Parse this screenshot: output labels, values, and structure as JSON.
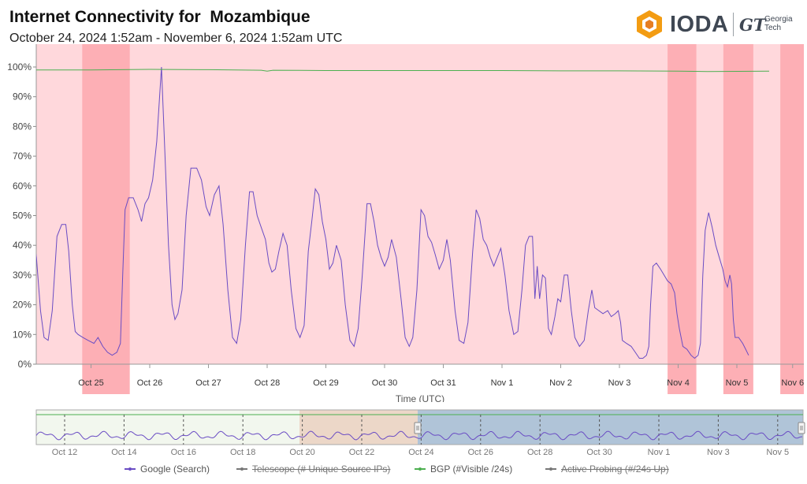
{
  "header": {
    "title": "Internet Connectivity for  Mozambique",
    "subtitle": "October 24, 2024 1:52am - November 6, 2024 1:52am UTC"
  },
  "logo": {
    "ioda": "IODA",
    "gt_mark": "GT",
    "gt_line1": "Georgia",
    "gt_line2": "Tech",
    "icon": "ioda-hexagon-icon",
    "brand_color": "#f39c12"
  },
  "chart_data": {
    "type": "line",
    "title": "",
    "xlabel": "Time (UTC)",
    "ylabel": "",
    "x_range_days": [
      -0.6,
      12.55
    ],
    "ylim": [
      0,
      100
    ],
    "y_ticks": [
      "0%",
      "10%",
      "20%",
      "30%",
      "40%",
      "50%",
      "60%",
      "70%",
      "80%",
      "90%",
      "100%"
    ],
    "x_ticks": [
      {
        "label": "Oct 25",
        "day": 1
      },
      {
        "label": "Oct 26",
        "day": 2
      },
      {
        "label": "Oct 27",
        "day": 3
      },
      {
        "label": "Oct 28",
        "day": 4
      },
      {
        "label": "Oct 29",
        "day": 5
      },
      {
        "label": "Oct 30",
        "day": 6
      },
      {
        "label": "Oct 31",
        "day": 7
      },
      {
        "label": "Nov 1",
        "day": 8
      },
      {
        "label": "Nov 2",
        "day": 9
      },
      {
        "label": "Nov 3",
        "day": 10
      },
      {
        "label": "Nov 4",
        "day": 11
      },
      {
        "label": "Nov 5",
        "day": 12
      },
      {
        "label": "Nov 6",
        "day": 12.95
      }
    ],
    "outage_bands_days": [
      [
        0.85,
        1.66
      ],
      [
        10.82,
        11.31
      ],
      [
        11.77,
        12.28
      ],
      [
        12.74,
        13.4
      ]
    ],
    "background_alert_color": "#ffd8dc",
    "band_color": "#fdafb5",
    "series": [
      {
        "name": "Google (Search)",
        "color": "#6a4cc4",
        "points": [
          [
            -0.6,
            7
          ],
          [
            -0.53,
            15
          ],
          [
            -0.46,
            38
          ],
          [
            -0.38,
            51
          ],
          [
            -0.3,
            45
          ],
          [
            -0.22,
            40
          ],
          [
            -0.17,
            33
          ],
          [
            -0.12,
            31
          ],
          [
            -0.06,
            42
          ],
          [
            0.0,
            45
          ],
          [
            0.07,
            36
          ],
          [
            0.14,
            18
          ],
          [
            0.2,
            9
          ],
          [
            0.27,
            8
          ],
          [
            0.34,
            18
          ],
          [
            0.42,
            43
          ],
          [
            0.5,
            47
          ],
          [
            0.57,
            47
          ],
          [
            0.62,
            38
          ],
          [
            0.68,
            20
          ],
          [
            0.73,
            11
          ],
          [
            0.78,
            10
          ],
          [
            0.86,
            9
          ],
          [
            0.95,
            8
          ],
          [
            1.05,
            7
          ],
          [
            1.12,
            9
          ],
          [
            1.2,
            6
          ],
          [
            1.28,
            4
          ],
          [
            1.36,
            3
          ],
          [
            1.44,
            4
          ],
          [
            1.5,
            7
          ],
          [
            1.54,
            30
          ],
          [
            1.58,
            52
          ],
          [
            1.64,
            56
          ],
          [
            1.72,
            56
          ],
          [
            1.8,
            52
          ],
          [
            1.86,
            48
          ],
          [
            1.92,
            54
          ],
          [
            1.98,
            56
          ],
          [
            2.05,
            62
          ],
          [
            2.12,
            75
          ],
          [
            2.2,
            100
          ],
          [
            2.26,
            70
          ],
          [
            2.32,
            40
          ],
          [
            2.38,
            20
          ],
          [
            2.43,
            15
          ],
          [
            2.48,
            17
          ],
          [
            2.55,
            25
          ],
          [
            2.62,
            50
          ],
          [
            2.7,
            66
          ],
          [
            2.8,
            66
          ],
          [
            2.88,
            62
          ],
          [
            2.96,
            53
          ],
          [
            3.02,
            50
          ],
          [
            3.1,
            57
          ],
          [
            3.18,
            60
          ],
          [
            3.25,
            47
          ],
          [
            3.33,
            25
          ],
          [
            3.41,
            9
          ],
          [
            3.48,
            7
          ],
          [
            3.55,
            15
          ],
          [
            3.63,
            40
          ],
          [
            3.7,
            58
          ],
          [
            3.76,
            58
          ],
          [
            3.83,
            50
          ],
          [
            3.9,
            46
          ],
          [
            3.97,
            42
          ],
          [
            4.03,
            34
          ],
          [
            4.08,
            31
          ],
          [
            4.14,
            32
          ],
          [
            4.2,
            38
          ],
          [
            4.27,
            44
          ],
          [
            4.34,
            40
          ],
          [
            4.41,
            25
          ],
          [
            4.49,
            12
          ],
          [
            4.56,
            9
          ],
          [
            4.63,
            13
          ],
          [
            4.7,
            38
          ],
          [
            4.76,
            48
          ],
          [
            4.82,
            59
          ],
          [
            4.88,
            57
          ],
          [
            4.94,
            48
          ],
          [
            5.0,
            42
          ],
          [
            5.06,
            32
          ],
          [
            5.12,
            34
          ],
          [
            5.18,
            40
          ],
          [
            5.26,
            35
          ],
          [
            5.33,
            20
          ],
          [
            5.41,
            8
          ],
          [
            5.48,
            6
          ],
          [
            5.55,
            12
          ],
          [
            5.62,
            30
          ],
          [
            5.7,
            54
          ],
          [
            5.76,
            54
          ],
          [
            5.82,
            48
          ],
          [
            5.88,
            40
          ],
          [
            5.94,
            36
          ],
          [
            6.0,
            33
          ],
          [
            6.06,
            36
          ],
          [
            6.12,
            42
          ],
          [
            6.2,
            36
          ],
          [
            6.28,
            22
          ],
          [
            6.35,
            9
          ],
          [
            6.42,
            6
          ],
          [
            6.48,
            9
          ],
          [
            6.55,
            25
          ],
          [
            6.62,
            52
          ],
          [
            6.68,
            50
          ],
          [
            6.74,
            43
          ],
          [
            6.8,
            41
          ],
          [
            6.86,
            37
          ],
          [
            6.93,
            32
          ],
          [
            7.0,
            35
          ],
          [
            7.06,
            42
          ],
          [
            7.12,
            35
          ],
          [
            7.2,
            18
          ],
          [
            7.27,
            8
          ],
          [
            7.35,
            7
          ],
          [
            7.42,
            14
          ],
          [
            7.5,
            38
          ],
          [
            7.56,
            52
          ],
          [
            7.62,
            49
          ],
          [
            7.68,
            42
          ],
          [
            7.74,
            40
          ],
          [
            7.8,
            36
          ],
          [
            7.86,
            33
          ],
          [
            7.92,
            36
          ],
          [
            7.98,
            39
          ],
          [
            8.05,
            30
          ],
          [
            8.12,
            18
          ],
          [
            8.2,
            10
          ],
          [
            8.27,
            11
          ],
          [
            8.34,
            25
          ],
          [
            8.4,
            40
          ],
          [
            8.46,
            43
          ],
          [
            8.52,
            43
          ],
          [
            8.56,
            22
          ],
          [
            8.6,
            33
          ],
          [
            8.64,
            22
          ],
          [
            8.69,
            30
          ],
          [
            8.74,
            29
          ],
          [
            8.79,
            12
          ],
          [
            8.84,
            10
          ],
          [
            8.9,
            16
          ],
          [
            8.95,
            22
          ],
          [
            9.0,
            21
          ],
          [
            9.06,
            30
          ],
          [
            9.12,
            30
          ],
          [
            9.18,
            18
          ],
          [
            9.24,
            9
          ],
          [
            9.32,
            6
          ],
          [
            9.4,
            8
          ],
          [
            9.47,
            18
          ],
          [
            9.53,
            25
          ],
          [
            9.58,
            19
          ],
          [
            9.65,
            18
          ],
          [
            9.72,
            17
          ],
          [
            9.8,
            18
          ],
          [
            9.86,
            16
          ],
          [
            9.93,
            17
          ],
          [
            9.98,
            18
          ],
          [
            10.02,
            14
          ],
          [
            10.05,
            8
          ],
          [
            10.12,
            7
          ],
          [
            10.2,
            6
          ],
          [
            10.27,
            4
          ],
          [
            10.34,
            2
          ],
          [
            10.4,
            2
          ],
          [
            10.46,
            3
          ],
          [
            10.5,
            6
          ],
          [
            10.53,
            20
          ],
          [
            10.57,
            33
          ],
          [
            10.63,
            34
          ],
          [
            10.7,
            32
          ],
          [
            10.76,
            30
          ],
          [
            10.82,
            28
          ],
          [
            10.88,
            27
          ],
          [
            10.94,
            24
          ],
          [
            10.98,
            17
          ],
          [
            11.02,
            12
          ],
          [
            11.08,
            6
          ],
          [
            11.15,
            5
          ],
          [
            11.22,
            3
          ],
          [
            11.28,
            2
          ],
          [
            11.34,
            3
          ],
          [
            11.38,
            7
          ],
          [
            11.42,
            30
          ],
          [
            11.46,
            45
          ],
          [
            11.52,
            51
          ],
          [
            11.58,
            46
          ],
          [
            11.64,
            40
          ],
          [
            11.7,
            36
          ],
          [
            11.76,
            32
          ],
          [
            11.8,
            28
          ],
          [
            11.84,
            26
          ],
          [
            11.88,
            30
          ],
          [
            11.91,
            27
          ],
          [
            11.94,
            15
          ],
          [
            11.97,
            9
          ],
          [
            12.03,
            9
          ],
          [
            12.1,
            7
          ],
          [
            12.15,
            5
          ],
          [
            12.2,
            3
          ]
        ]
      },
      {
        "name": "BGP (#Visible /24s)",
        "color": "#4caf50",
        "points": [
          [
            -0.6,
            99
          ],
          [
            1.0,
            99
          ],
          [
            2.0,
            99.2
          ],
          [
            3.0,
            99.1
          ],
          [
            3.9,
            98.9
          ],
          [
            4.0,
            98.6
          ],
          [
            4.1,
            98.9
          ],
          [
            5.0,
            98.8
          ],
          [
            6.0,
            98.8
          ],
          [
            7.0,
            98.8
          ],
          [
            8.0,
            98.8
          ],
          [
            9.0,
            98.7
          ],
          [
            10.0,
            98.7
          ],
          [
            11.0,
            98.6
          ],
          [
            11.5,
            98.5
          ],
          [
            12.55,
            98.6
          ]
        ]
      }
    ]
  },
  "navigator": {
    "x_ticks": [
      "Oct 12",
      "Oct 14",
      "Oct 16",
      "Oct 18",
      "Oct 20",
      "Oct 22",
      "Oct 24",
      "Oct 26",
      "Oct 28",
      "Oct 30",
      "Nov 1",
      "Nov 3",
      "Nov 5"
    ],
    "series_line_color": "#6a4cc4",
    "bgp_line_color": "#4caf50",
    "normal_fill": "#f2f7ee",
    "warning_fill": "#ecd7c8",
    "selection_fill": "#b0c4d8"
  },
  "legend": [
    {
      "label": "Google (Search)",
      "color": "#6a4cc4",
      "enabled": true
    },
    {
      "label": "Telescope (# Unique Source IPs)",
      "color": "#777777",
      "enabled": false
    },
    {
      "label": "BGP (#Visible /24s)",
      "color": "#4caf50",
      "enabled": true
    },
    {
      "label": "Active Probing (#/24s Up)",
      "color": "#777777",
      "enabled": false
    }
  ]
}
